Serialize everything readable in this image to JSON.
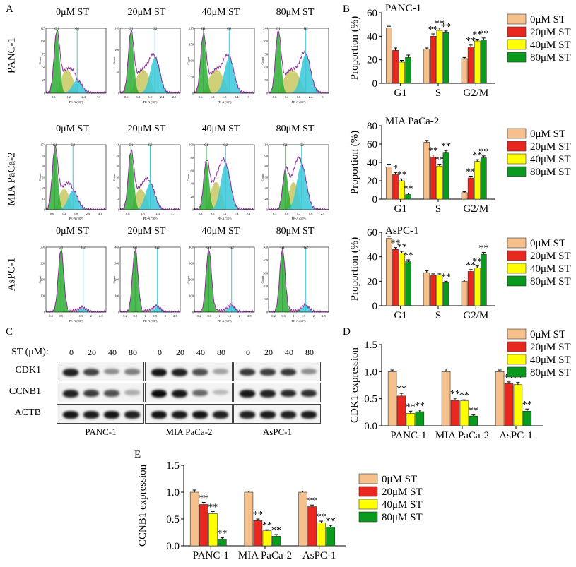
{
  "panel_labels": {
    "A": "A",
    "B": "B",
    "C": "C",
    "D": "D",
    "E": "E"
  },
  "colors": {
    "s0": "#f5c08c",
    "s1": "#e8281e",
    "s2": "#ffff00",
    "s3": "#0a9a1e",
    "g1": "#2eae36",
    "gs": "#c8c860",
    "g2": "#38c8d8",
    "curve": "#8a2a96"
  },
  "histograms": {
    "columns": [
      "0μM ST",
      "20μM ST",
      "40μM ST",
      "80μM ST"
    ],
    "rows": [
      {
        "label": "PANC-1",
        "xticks": [
          [
            "0.3",
            "1.2",
            "2.4",
            "3.3"
          ],
          [
            "0.6",
            "1.2",
            "1.8",
            "2.4",
            "2.8"
          ],
          [
            "0.6",
            "1.2",
            "1.8",
            "2.4",
            "3"
          ],
          [
            "0.6",
            "1.2",
            "1.8",
            "2.4",
            "3"
          ]
        ],
        "yticks": [
          [
            "0",
            "25",
            "50",
            "75",
            "100",
            "125"
          ],
          [
            "0",
            "50",
            "100",
            "149"
          ],
          [
            "0",
            "50",
            "100",
            "150",
            "215"
          ],
          [
            "0",
            "50",
            "100",
            "150",
            "200",
            "244"
          ]
        ],
        "g1": [
          0.18,
          0.18,
          0.15,
          0.16
        ],
        "g2": [
          0.52,
          0.58,
          0.58,
          0.62
        ],
        "h1": [
          0.95,
          0.95,
          0.9,
          0.95
        ],
        "h2": [
          0.2,
          0.55,
          0.55,
          0.6
        ]
      },
      {
        "label": "MIA PaCa-2",
        "xticks": [
          [
            "0.6",
            "1.2",
            "1.8",
            "2.4",
            "4.1"
          ],
          [
            "0.8",
            "1.5",
            "2.3",
            "3.7"
          ],
          [
            "0.3",
            "0.6",
            "1.2",
            "1.4",
            "2.2"
          ],
          [
            "0.3",
            "0.6",
            "1.2",
            "1.6",
            "2.4"
          ]
        ],
        "yticks": [
          [
            "0",
            "10",
            "20",
            "30",
            "40",
            "50",
            "174"
          ],
          [
            "0",
            "10",
            "20",
            "30",
            "40",
            "50",
            "66"
          ],
          [
            "0",
            "20",
            "40",
            "60",
            "80",
            "100"
          ],
          [
            "0",
            "20",
            "40",
            "60",
            "80",
            "100",
            "114"
          ]
        ],
        "g1": [
          0.15,
          0.18,
          0.2,
          0.28
        ],
        "g2": [
          0.45,
          0.5,
          0.52,
          0.55
        ],
        "h1": [
          0.95,
          0.9,
          0.75,
          0.6
        ],
        "h2": [
          0.3,
          0.4,
          0.7,
          0.7
        ]
      },
      {
        "label": "AsPC-1",
        "xticks": [
          [
            "0.2",
            "0.5",
            "1",
            "1.5",
            "2",
            "2.5"
          ],
          [
            "0.2",
            "0.5",
            "1",
            "1.5",
            "2",
            "2.5"
          ],
          [
            "0.2",
            "0.5",
            "1",
            "1.5",
            "2",
            "2.5"
          ],
          [
            "0.2",
            "0.5",
            "1",
            "1.5",
            "2",
            "2.5"
          ]
        ],
        "yticks": [
          [
            "0",
            "100",
            "200",
            "300",
            "391"
          ],
          [
            "0",
            "100",
            "200",
            "300",
            "466"
          ],
          [
            "0",
            "100",
            "200",
            "300",
            "400"
          ],
          [
            "0",
            "100",
            "200",
            "300",
            "400",
            "500"
          ]
        ],
        "g1": [
          0.25,
          0.25,
          0.24,
          0.23
        ],
        "g2": [
          0.62,
          0.62,
          0.62,
          0.62
        ],
        "h1": [
          0.95,
          0.95,
          0.95,
          0.95
        ],
        "h2": [
          0.06,
          0.08,
          0.1,
          0.1
        ]
      }
    ],
    "xlabel": "PE-A (10⁵)",
    "ylabel": "Count",
    "gate1": "G1",
    "gate2": "G2"
  },
  "western": {
    "st_label": "ST (μM):",
    "doses": [
      "0",
      "20",
      "40",
      "80"
    ],
    "rows": [
      "CDK1",
      "CCNB1",
      "ACTB"
    ],
    "lines": [
      "PANC-1",
      "MIA PaCa-2",
      "AsPC-1"
    ]
  },
  "chart_data": [
    {
      "id": "B1",
      "type": "bar",
      "title": "PANC-1",
      "ylabel": "Proportion (%)",
      "ylim": [
        0,
        60
      ],
      "yticks": [
        0,
        20,
        40,
        60
      ],
      "categories": [
        "G1",
        "S",
        "G2/M"
      ],
      "series": [
        {
          "name": "0μM ST",
          "values": [
            47,
            29,
            21
          ],
          "err": [
            1.5,
            1,
            1
          ]
        },
        {
          "name": "20μM ST",
          "values": [
            28,
            40,
            31
          ],
          "err": [
            2,
            2,
            1.5
          ]
        },
        {
          "name": "40μM ST",
          "values": [
            18,
            45,
            36
          ],
          "err": [
            1.5,
            2,
            1.5
          ]
        },
        {
          "name": "80μM ST",
          "values": [
            22,
            43,
            37
          ],
          "err": [
            2,
            1.5,
            1.5
          ]
        }
      ],
      "stars": [
        [
          "",
          "",
          "",
          ""
        ],
        [
          "",
          "**",
          "**",
          "**"
        ],
        [
          "",
          "**",
          "**",
          "**"
        ]
      ],
      "legend": [
        "0μM ST",
        "20μM ST",
        "40μM ST",
        "80μM ST"
      ]
    },
    {
      "id": "B2",
      "type": "bar",
      "title": "MIA PaCa-2",
      "ylabel": "Proportion (%)",
      "ylim": [
        0,
        80
      ],
      "yticks": [
        0,
        20,
        40,
        60,
        80
      ],
      "categories": [
        "G1",
        "S",
        "G2/M"
      ],
      "series": [
        {
          "name": "0μM ST",
          "values": [
            35,
            62,
            7
          ],
          "err": [
            3,
            2,
            1
          ]
        },
        {
          "name": "20μM ST",
          "values": [
            27,
            46,
            23
          ],
          "err": [
            2,
            2,
            2
          ]
        },
        {
          "name": "40μM ST",
          "values": [
            20,
            36,
            41
          ],
          "err": [
            2,
            2,
            2
          ]
        },
        {
          "name": "80μM ST",
          "values": [
            5,
            51,
            45
          ],
          "err": [
            1.5,
            2,
            2
          ]
        }
      ],
      "stars": [
        [
          "",
          "*",
          "**",
          "**"
        ],
        [
          "",
          "**",
          "**",
          "**"
        ],
        [
          "",
          "**",
          "**",
          "**"
        ]
      ],
      "legend": [
        "0μM ST",
        "20μM ST",
        "40μM ST",
        "80μM ST"
      ]
    },
    {
      "id": "B3",
      "type": "bar",
      "title": "AsPC-1",
      "ylabel": "Proportion (%)",
      "ylim": [
        0,
        60
      ],
      "yticks": [
        0,
        20,
        40,
        60
      ],
      "categories": [
        "G1",
        "S",
        "G2/M"
      ],
      "series": [
        {
          "name": "0μM ST",
          "values": [
            55,
            27,
            20
          ],
          "err": [
            1.5,
            1.5,
            1
          ]
        },
        {
          "name": "20μM ST",
          "values": [
            46,
            25,
            28
          ],
          "err": [
            1.5,
            1,
            1.5
          ]
        },
        {
          "name": "40μM ST",
          "values": [
            43,
            25,
            31
          ],
          "err": [
            1.5,
            1,
            1.5
          ]
        },
        {
          "name": "80μM ST",
          "values": [
            36,
            19,
            42
          ],
          "err": [
            1.5,
            1,
            1.5
          ]
        }
      ],
      "stars": [
        [
          "",
          "**",
          "**",
          "**"
        ],
        [
          "",
          "",
          "",
          "**"
        ],
        [
          "",
          "**",
          "**",
          "**"
        ]
      ],
      "legend": [
        "0μM ST",
        "20μM ST",
        "40μM ST",
        "80μM ST"
      ]
    },
    {
      "id": "D",
      "type": "bar",
      "title": "",
      "ylabel": "CDK1 expression",
      "ylim": [
        0,
        1.5
      ],
      "yticks": [
        "0.0",
        "0.5",
        "1.0",
        "1.5"
      ],
      "categories": [
        "PANC-1",
        "MIA PaCa-2",
        "AsPC-1"
      ],
      "series": [
        {
          "name": "0μM ST",
          "values": [
            1.0,
            1.0,
            1.0
          ],
          "err": [
            0.03,
            0.05,
            0.03
          ]
        },
        {
          "name": "20μM ST",
          "values": [
            0.55,
            0.47,
            0.78
          ],
          "err": [
            0.05,
            0.04,
            0.03
          ]
        },
        {
          "name": "40μM ST",
          "values": [
            0.23,
            0.46,
            0.76
          ],
          "err": [
            0.04,
            0.02,
            0.04
          ]
        },
        {
          "name": "80μM ST",
          "values": [
            0.26,
            0.18,
            0.27
          ],
          "err": [
            0.03,
            0.02,
            0.04
          ]
        }
      ],
      "stars": [
        [
          "",
          "**",
          "**",
          "**"
        ],
        [
          "",
          "**",
          "**",
          "**"
        ],
        [
          "",
          "**",
          "**",
          "**"
        ]
      ],
      "legend": [
        "0μM ST",
        "20μM ST",
        "40μM ST",
        "80μM ST"
      ]
    },
    {
      "id": "E",
      "type": "bar",
      "title": "",
      "ylabel": "CCNB1 expression",
      "ylim": [
        0,
        1.5
      ],
      "yticks": [
        "0.0",
        "0.5",
        "1.0",
        "1.5"
      ],
      "categories": [
        "PANC-1",
        "MIA PaCa-2",
        "AsPC-1"
      ],
      "series": [
        {
          "name": "0μM ST",
          "values": [
            1.0,
            1.0,
            1.0
          ],
          "err": [
            0.04,
            0.02,
            0.02
          ]
        },
        {
          "name": "20μM ST",
          "values": [
            0.77,
            0.47,
            0.73
          ],
          "err": [
            0.04,
            0.03,
            0.03
          ]
        },
        {
          "name": "40μM ST",
          "values": [
            0.6,
            0.28,
            0.43
          ],
          "err": [
            0.04,
            0.02,
            0.03
          ]
        },
        {
          "name": "80μM ST",
          "values": [
            0.12,
            0.18,
            0.35
          ],
          "err": [
            0.03,
            0.03,
            0.03
          ]
        }
      ],
      "stars": [
        [
          "",
          "**",
          "**",
          "**"
        ],
        [
          "",
          "**",
          "**",
          "**"
        ],
        [
          "",
          "**",
          "**",
          "**"
        ]
      ],
      "legend": [
        "0μM ST",
        "20μM ST",
        "40μM ST",
        "80μM ST"
      ]
    }
  ]
}
